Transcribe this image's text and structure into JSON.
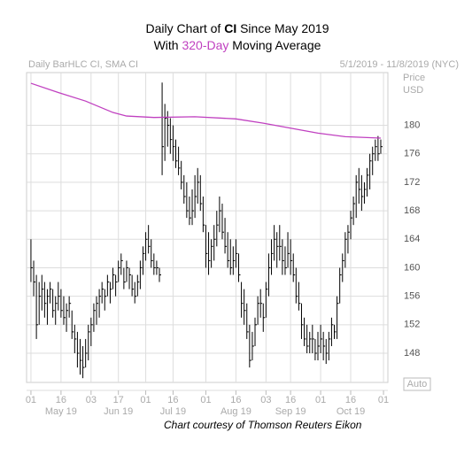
{
  "chart_data": {
    "type": "hlc",
    "title_parts": [
      "Daily Chart of ",
      "CI",
      " Since May 2019"
    ],
    "subtitle_parts": [
      "With ",
      "320-Day",
      " Moving Average"
    ],
    "study_label": "Daily BarHLC CI, SMA CI",
    "date_range": "5/1/2019 - 11/8/2019 (NYC)",
    "y_axis_label": [
      "Price",
      "USD"
    ],
    "scale_button": "Auto",
    "credit": "Chart courtesy of Thomson Reuters Eikon",
    "color": "#000000",
    "grid": true,
    "x": [
      0,
      1,
      2,
      3,
      4,
      5,
      6,
      7,
      8,
      9,
      10,
      11,
      12,
      13,
      14,
      15,
      16,
      17,
      18,
      19,
      20,
      21,
      22,
      23,
      24,
      25,
      26,
      27,
      28,
      29,
      30,
      31,
      32,
      33,
      34,
      35,
      36,
      37,
      38,
      39,
      40,
      41,
      42,
      43,
      44,
      45,
      46,
      47,
      48,
      49,
      50,
      51,
      52,
      53,
      54,
      55,
      56,
      57,
      58,
      59,
      60,
      61,
      62,
      63,
      64,
      65,
      66,
      67,
      68,
      69,
      70,
      71,
      72,
      73,
      74,
      75,
      76,
      77,
      78,
      79,
      80,
      81,
      82,
      83,
      84,
      85,
      86,
      87,
      88,
      89,
      90,
      91,
      92,
      93,
      94,
      95,
      96,
      97,
      98,
      99,
      100,
      101,
      102,
      103,
      104,
      105,
      106,
      107,
      108,
      109,
      110,
      111,
      112,
      113,
      114,
      115,
      116,
      117,
      118,
      119,
      120,
      121,
      122,
      123,
      124,
      125,
      126,
      127,
      128
    ],
    "high": [
      164,
      161,
      159,
      158,
      159,
      158,
      157,
      158,
      157,
      156,
      158,
      157,
      156,
      155,
      156,
      154,
      152,
      151,
      150,
      149,
      150,
      152,
      153,
      155,
      156,
      157,
      158,
      157,
      159,
      158,
      160,
      159,
      161,
      162,
      160,
      161,
      160,
      159,
      158,
      159,
      161,
      163,
      165,
      166,
      164,
      162,
      161,
      160,
      186,
      183,
      182,
      181,
      180,
      178,
      177,
      175,
      173,
      172,
      170,
      171,
      173,
      174,
      173,
      170,
      166,
      165,
      164,
      166,
      168,
      170,
      169,
      167,
      165,
      164,
      163,
      164,
      162,
      158,
      157,
      155,
      152,
      151,
      153,
      156,
      157,
      155,
      158,
      162,
      164,
      166,
      165,
      166,
      164,
      163,
      165,
      164,
      162,
      160,
      158,
      155,
      153,
      152,
      151,
      152,
      150,
      151,
      152,
      151,
      150,
      151,
      153,
      152,
      156,
      160,
      162,
      165,
      166,
      168,
      170,
      173,
      174,
      173,
      172,
      174,
      176,
      177,
      178,
      178.5,
      178
    ],
    "low": [
      158,
      156,
      150,
      152,
      154,
      153,
      152,
      155,
      153,
      152,
      154,
      153,
      152,
      151,
      153,
      150,
      148,
      146,
      145,
      144.5,
      146,
      147,
      149,
      151,
      152,
      153,
      155,
      154,
      156,
      155,
      157,
      156,
      158,
      159,
      157,
      158,
      157,
      156,
      155,
      156,
      157,
      159,
      161,
      162,
      160,
      159,
      159,
      158,
      173,
      175,
      177,
      176,
      175,
      174,
      173,
      171,
      169,
      167,
      166,
      166,
      167,
      169,
      168,
      165,
      160,
      159,
      160,
      161,
      163,
      165,
      164,
      162,
      160,
      159,
      159,
      160,
      158,
      153,
      152,
      150,
      146,
      147,
      149,
      152,
      153,
      151,
      153,
      156,
      159,
      161,
      160,
      161,
      159,
      159,
      160,
      159,
      158,
      155,
      154,
      150,
      149,
      148,
      148,
      148,
      147,
      147,
      148,
      147,
      146.5,
      147,
      149,
      150,
      150,
      155,
      158,
      160,
      162,
      164,
      166,
      167,
      169,
      168,
      169,
      170,
      171,
      173,
      175,
      175,
      176
    ],
    "close": [
      160,
      158,
      152,
      156,
      157,
      155,
      156,
      157,
      154,
      155,
      156,
      154,
      153,
      154,
      155,
      151,
      150,
      148,
      147,
      146,
      148,
      151,
      152,
      154,
      155,
      156,
      157,
      156,
      158,
      157,
      159,
      158,
      160,
      161,
      158,
      160,
      159,
      157,
      156,
      158,
      160,
      162,
      164,
      163,
      161,
      160,
      160,
      159,
      177,
      181,
      180,
      178,
      177,
      175,
      174,
      172,
      170,
      168,
      167,
      168,
      170,
      172,
      169,
      166,
      162,
      161,
      163,
      164,
      166,
      168,
      165,
      163,
      161,
      160,
      161,
      162,
      159,
      155,
      154,
      151,
      147,
      149,
      152,
      155,
      155,
      153,
      157,
      160,
      162,
      164,
      163,
      163,
      161,
      160,
      162,
      161,
      159,
      156,
      155,
      152,
      150,
      149,
      150,
      150,
      148,
      149,
      150,
      149,
      148,
      150,
      152,
      151,
      155,
      159,
      161,
      164,
      165,
      167,
      169,
      172,
      171,
      170,
      171,
      173,
      175,
      176,
      177,
      176,
      177
    ],
    "moving_average": {
      "color": "#c040c0",
      "x": [
        0,
        10,
        20,
        30,
        35,
        45,
        60,
        75,
        85,
        95,
        105,
        115,
        128
      ],
      "values": [
        185.9,
        184.6,
        183.4,
        181.8,
        181.3,
        181.1,
        181.2,
        180.9,
        180.3,
        179.6,
        178.9,
        178.4,
        178.2
      ]
    },
    "xlim": [
      -1.6,
      130.6
    ],
    "ylim": [
      143.9,
      187.4
    ],
    "yticks": [
      148,
      152,
      156,
      160,
      164,
      168,
      172,
      176,
      180
    ],
    "xticks": [
      {
        "value": 0,
        "label": "01"
      },
      {
        "value": 11,
        "label": "16"
      },
      {
        "value": 22,
        "label": "03"
      },
      {
        "value": 32,
        "label": "17"
      },
      {
        "value": 42,
        "label": "01"
      },
      {
        "value": 52,
        "label": "16"
      },
      {
        "value": 64,
        "label": "01"
      },
      {
        "value": 75,
        "label": "16"
      },
      {
        "value": 86,
        "label": "03"
      },
      {
        "value": 95,
        "label": "16"
      },
      {
        "value": 106,
        "label": "01"
      },
      {
        "value": 117,
        "label": "16"
      },
      {
        "value": 129,
        "label": "01"
      }
    ],
    "month_labels": [
      {
        "value": 11,
        "label": "May 19"
      },
      {
        "value": 32,
        "label": "Jun 19"
      },
      {
        "value": 52,
        "label": "Jul 19"
      },
      {
        "value": 75,
        "label": "Aug 19"
      },
      {
        "value": 95,
        "label": "Sep 19"
      },
      {
        "value": 117,
        "label": "Oct 19"
      }
    ]
  }
}
